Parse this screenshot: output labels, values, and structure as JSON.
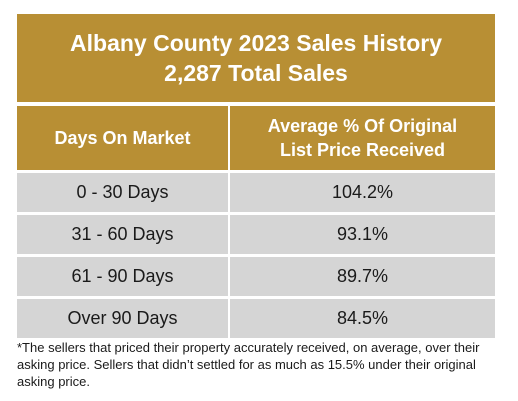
{
  "colors": {
    "header_background": "#b88f34",
    "header_text": "#ffffff",
    "row_background": "#d5d5d5",
    "body_text": "#1a1a1a"
  },
  "chart_data": {
    "type": "table",
    "title": "Albany County 2023 Sales History",
    "subtitle": "2,287 Total Sales",
    "columns": [
      "Days On Market",
      "Average % Of Original List Price Received"
    ],
    "rows": [
      {
        "days": "0 - 30 Days",
        "pct": "104.2%"
      },
      {
        "days": "31 - 60 Days",
        "pct": "93.1%"
      },
      {
        "days": "61 - 90 Days",
        "pct": "89.7%"
      },
      {
        "days": "Over 90 Days",
        "pct": "84.5%"
      }
    ],
    "footnote": "*The sellers that priced their property accurately received, on average, over their asking price.  Sellers that didn’t settled for as much as 15.5% under their original asking price."
  }
}
